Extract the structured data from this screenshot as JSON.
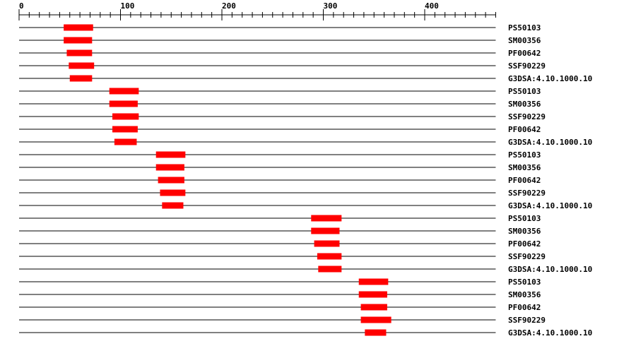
{
  "chart_data": {
    "type": "domain-map",
    "axis": {
      "min": 0,
      "max": 470,
      "major_ticks": [
        0,
        100,
        200,
        300,
        400
      ],
      "minor_step": 10
    },
    "colors": {
      "domain": "#ff0000",
      "line": "#000000"
    },
    "tracks": [
      {
        "label": "PS50103",
        "start": 44,
        "end": 73
      },
      {
        "label": "SM00356",
        "start": 44,
        "end": 72
      },
      {
        "label": "PF00642",
        "start": 47,
        "end": 72
      },
      {
        "label": "SSF90229",
        "start": 49,
        "end": 74
      },
      {
        "label": "G3DSA:4.10.1000.10",
        "start": 50,
        "end": 72
      },
      {
        "label": "PS50103",
        "start": 89,
        "end": 118
      },
      {
        "label": "SM00356",
        "start": 89,
        "end": 117
      },
      {
        "label": "SSF90229",
        "start": 92,
        "end": 118
      },
      {
        "label": "PF00642",
        "start": 92,
        "end": 117
      },
      {
        "label": "G3DSA:4.10.1000.10",
        "start": 94,
        "end": 116
      },
      {
        "label": "PS50103",
        "start": 135,
        "end": 164
      },
      {
        "label": "SM00356",
        "start": 135,
        "end": 163
      },
      {
        "label": "PF00642",
        "start": 137,
        "end": 163
      },
      {
        "label": "SSF90229",
        "start": 139,
        "end": 164
      },
      {
        "label": "G3DSA:4.10.1000.10",
        "start": 141,
        "end": 162
      },
      {
        "label": "PS50103",
        "start": 288,
        "end": 318
      },
      {
        "label": "SM00356",
        "start": 288,
        "end": 316
      },
      {
        "label": "PF00642",
        "start": 291,
        "end": 316
      },
      {
        "label": "SSF90229",
        "start": 294,
        "end": 318
      },
      {
        "label": "G3DSA:4.10.1000.10",
        "start": 295,
        "end": 318
      },
      {
        "label": "PS50103",
        "start": 335,
        "end": 364
      },
      {
        "label": "SM00356",
        "start": 335,
        "end": 363
      },
      {
        "label": "PF00642",
        "start": 337,
        "end": 363
      },
      {
        "label": "SSF90229",
        "start": 337,
        "end": 367
      },
      {
        "label": "G3DSA:4.10.1000.10",
        "start": 341,
        "end": 362
      }
    ]
  }
}
